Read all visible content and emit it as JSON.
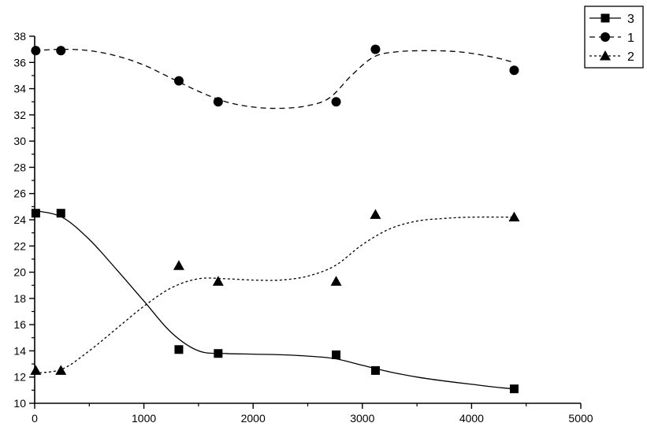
{
  "chart_data": {
    "type": "scatter",
    "title": "",
    "xlabel": "",
    "ylabel": "",
    "xlim": [
      0,
      5000
    ],
    "ylim": [
      10,
      38
    ],
    "x_ticks": [
      0,
      1000,
      2000,
      3000,
      4000,
      5000
    ],
    "y_ticks": [
      10,
      12,
      14,
      16,
      18,
      20,
      22,
      24,
      26,
      28,
      30,
      32,
      34,
      36,
      38
    ],
    "grid": false,
    "legend_position": "top-right",
    "series": [
      {
        "name": "3",
        "marker": "square",
        "line": "solid",
        "points": [
          {
            "x": 10,
            "y": 24.5
          },
          {
            "x": 240,
            "y": 24.5
          },
          {
            "x": 1320,
            "y": 14.1
          },
          {
            "x": 1680,
            "y": 13.8
          },
          {
            "x": 2760,
            "y": 13.7
          },
          {
            "x": 3120,
            "y": 12.5
          },
          {
            "x": 4390,
            "y": 11.1
          }
        ],
        "fit_curve": [
          {
            "x": 0,
            "y": 24.7
          },
          {
            "x": 250,
            "y": 24.2
          },
          {
            "x": 500,
            "y": 22.5
          },
          {
            "x": 750,
            "y": 20.2
          },
          {
            "x": 1000,
            "y": 17.8
          },
          {
            "x": 1250,
            "y": 15.4
          },
          {
            "x": 1500,
            "y": 14.0
          },
          {
            "x": 1750,
            "y": 13.8
          },
          {
            "x": 2000,
            "y": 13.75
          },
          {
            "x": 2250,
            "y": 13.7
          },
          {
            "x": 2500,
            "y": 13.6
          },
          {
            "x": 2750,
            "y": 13.4
          },
          {
            "x": 3000,
            "y": 12.9
          },
          {
            "x": 3250,
            "y": 12.4
          },
          {
            "x": 3500,
            "y": 12.0
          },
          {
            "x": 3750,
            "y": 11.7
          },
          {
            "x": 4000,
            "y": 11.45
          },
          {
            "x": 4250,
            "y": 11.2
          },
          {
            "x": 4390,
            "y": 11.1
          }
        ]
      },
      {
        "name": "1",
        "marker": "circle",
        "line": "dashed",
        "points": [
          {
            "x": 10,
            "y": 36.9
          },
          {
            "x": 240,
            "y": 36.9
          },
          {
            "x": 1320,
            "y": 34.6
          },
          {
            "x": 1680,
            "y": 33.0
          },
          {
            "x": 2760,
            "y": 33.0
          },
          {
            "x": 3120,
            "y": 37.0
          },
          {
            "x": 4390,
            "y": 35.4
          }
        ],
        "fit_curve": [
          {
            "x": 0,
            "y": 36.9
          },
          {
            "x": 250,
            "y": 37.0
          },
          {
            "x": 500,
            "y": 36.9
          },
          {
            "x": 750,
            "y": 36.5
          },
          {
            "x": 1000,
            "y": 35.8
          },
          {
            "x": 1250,
            "y": 34.8
          },
          {
            "x": 1500,
            "y": 33.8
          },
          {
            "x": 1750,
            "y": 33.0
          },
          {
            "x": 2000,
            "y": 32.6
          },
          {
            "x": 2250,
            "y": 32.5
          },
          {
            "x": 2500,
            "y": 32.7
          },
          {
            "x": 2700,
            "y": 33.3
          },
          {
            "x": 2900,
            "y": 35.0
          },
          {
            "x": 3100,
            "y": 36.4
          },
          {
            "x": 3300,
            "y": 36.8
          },
          {
            "x": 3600,
            "y": 36.9
          },
          {
            "x": 3900,
            "y": 36.8
          },
          {
            "x": 4200,
            "y": 36.4
          },
          {
            "x": 4390,
            "y": 36.0
          }
        ]
      },
      {
        "name": "2",
        "marker": "triangle",
        "line": "dotted",
        "points": [
          {
            "x": 10,
            "y": 12.5
          },
          {
            "x": 240,
            "y": 12.5
          },
          {
            "x": 1320,
            "y": 20.5
          },
          {
            "x": 1680,
            "y": 19.3
          },
          {
            "x": 2760,
            "y": 19.3
          },
          {
            "x": 3120,
            "y": 24.4
          },
          {
            "x": 4390,
            "y": 24.2
          }
        ],
        "fit_curve": [
          {
            "x": 0,
            "y": 12.3
          },
          {
            "x": 250,
            "y": 12.6
          },
          {
            "x": 500,
            "y": 14.0
          },
          {
            "x": 750,
            "y": 15.7
          },
          {
            "x": 1000,
            "y": 17.4
          },
          {
            "x": 1250,
            "y": 18.8
          },
          {
            "x": 1500,
            "y": 19.5
          },
          {
            "x": 1750,
            "y": 19.5
          },
          {
            "x": 2000,
            "y": 19.4
          },
          {
            "x": 2250,
            "y": 19.4
          },
          {
            "x": 2500,
            "y": 19.7
          },
          {
            "x": 2750,
            "y": 20.5
          },
          {
            "x": 3000,
            "y": 22.1
          },
          {
            "x": 3250,
            "y": 23.3
          },
          {
            "x": 3500,
            "y": 23.9
          },
          {
            "x": 3750,
            "y": 24.1
          },
          {
            "x": 4000,
            "y": 24.2
          },
          {
            "x": 4390,
            "y": 24.2
          }
        ]
      }
    ]
  }
}
